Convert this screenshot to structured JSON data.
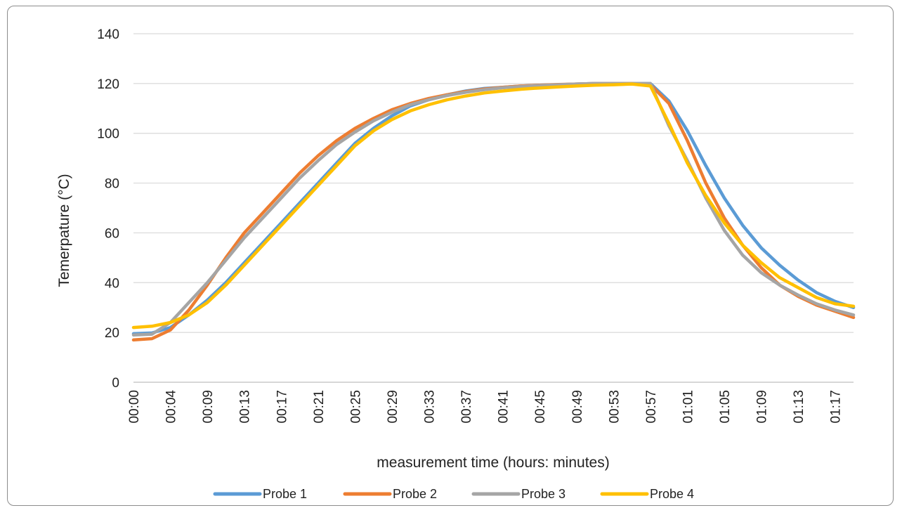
{
  "chart_data": {
    "type": "line",
    "xlabel": "measurement time (hours: minutes)",
    "ylabel": "Temerpature (°C)",
    "ylim": [
      0,
      140
    ],
    "yticks": [
      "0",
      "20",
      "40",
      "60",
      "80",
      "100",
      "120",
      "140"
    ],
    "x": [
      "00:00",
      "00:02",
      "00:04",
      "00:07",
      "00:09",
      "00:11",
      "00:13",
      "00:15",
      "00:17",
      "00:19",
      "00:21",
      "00:23",
      "00:25",
      "00:27",
      "00:29",
      "00:31",
      "00:33",
      "00:35",
      "00:37",
      "00:39",
      "00:41",
      "00:43",
      "00:45",
      "00:47",
      "00:49",
      "00:51",
      "00:53",
      "00:55",
      "00:57",
      "00:59",
      "01:01",
      "01:03",
      "01:05",
      "01:07",
      "01:09",
      "01:11",
      "01:13",
      "01:15",
      "01:17",
      "01:19"
    ],
    "xtick_labels": [
      "00:00",
      "00:04",
      "00:09",
      "00:13",
      "00:17",
      "00:21",
      "00:25",
      "00:29",
      "00:33",
      "00:37",
      "00:41",
      "00:45",
      "00:49",
      "00:53",
      "00:57",
      "01:01",
      "01:05",
      "01:09",
      "01:13",
      "01:17"
    ],
    "grid": true,
    "legend_position": "bottom",
    "series": [
      {
        "name": "Probe 1",
        "color": "#5b9bd5",
        "values": [
          19.5,
          19.8,
          22,
          27,
          33,
          40,
          48,
          56,
          64,
          72,
          80,
          88,
          96,
          102,
          107,
          111,
          113.5,
          115.5,
          117,
          118,
          118.5,
          119,
          119.3,
          119.5,
          119.8,
          120,
          120,
          120,
          120,
          113,
          101,
          87,
          74,
          63,
          54,
          47,
          41,
          36,
          32.5,
          30
        ]
      },
      {
        "name": "Probe 2",
        "color": "#ed7d31",
        "values": [
          17,
          17.5,
          21,
          29,
          39,
          50,
          60,
          68,
          76,
          84,
          91,
          97,
          102,
          106,
          109.5,
          112,
          114,
          115.5,
          116.8,
          117.8,
          118.5,
          119,
          119.3,
          119.6,
          119.8,
          120,
          120,
          120,
          119.5,
          112,
          97,
          80,
          66,
          55,
          46,
          39,
          34.5,
          31,
          28.5,
          26
        ]
      },
      {
        "name": "Probe 3",
        "color": "#a5a5a5",
        "values": [
          19,
          19.3,
          24,
          32,
          40,
          49,
          58,
          66,
          74,
          82,
          89,
          95.5,
          100.5,
          105,
          108.5,
          111.5,
          113.5,
          115.2,
          116.5,
          117.5,
          118.3,
          118.8,
          119.2,
          119.5,
          119.8,
          120,
          120,
          120,
          120,
          103,
          89,
          74,
          61,
          51,
          44,
          39,
          35,
          31.5,
          29,
          27
        ]
      },
      {
        "name": "Probe 4",
        "color": "#ffc000",
        "values": [
          22,
          22.5,
          24,
          27,
          32,
          39,
          47,
          55,
          63,
          71,
          79,
          87,
          95,
          101,
          105.5,
          109,
          111.5,
          113.5,
          115,
          116.2,
          117,
          117.7,
          118.2,
          118.6,
          119,
          119.3,
          119.5,
          119.8,
          119,
          104,
          88,
          75,
          64,
          55,
          48,
          42,
          38,
          34,
          31.5,
          30.5
        ]
      }
    ]
  }
}
